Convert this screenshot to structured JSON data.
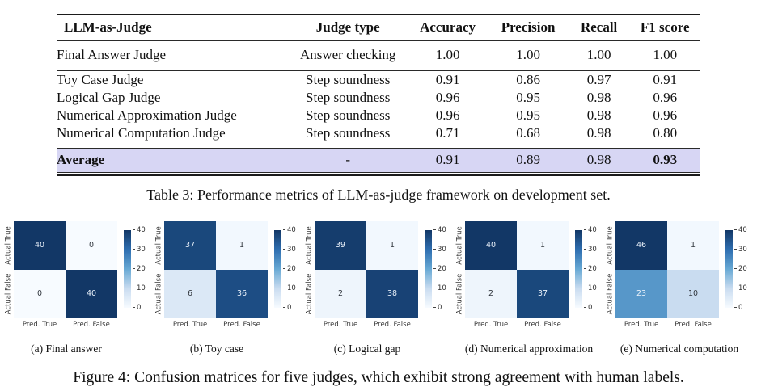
{
  "table": {
    "headers": [
      "LLM-as-Judge",
      "Judge type",
      "Accuracy",
      "Precision",
      "Recall",
      "F1 score"
    ],
    "rows": [
      {
        "group": "final",
        "cells": [
          "Final Answer Judge",
          "Answer checking",
          "1.00",
          "1.00",
          "1.00",
          "1.00"
        ]
      },
      {
        "group": "step",
        "cells": [
          "Toy Case Judge",
          "Step soundness",
          "0.91",
          "0.86",
          "0.97",
          "0.91"
        ]
      },
      {
        "group": "step",
        "cells": [
          "Logical Gap Judge",
          "Step soundness",
          "0.96",
          "0.95",
          "0.98",
          "0.96"
        ]
      },
      {
        "group": "step",
        "cells": [
          "Numerical Approximation Judge",
          "Step soundness",
          "0.96",
          "0.95",
          "0.98",
          "0.96"
        ]
      },
      {
        "group": "step",
        "cells": [
          "Numerical Computation Judge",
          "Step soundness",
          "0.71",
          "0.68",
          "0.98",
          "0.80"
        ]
      },
      {
        "group": "average",
        "highlight": true,
        "bold_cells": [
          0,
          5
        ],
        "cells": [
          "Average",
          "-",
          "0.91",
          "0.89",
          "0.98",
          "0.93"
        ]
      }
    ],
    "highlight_color": "#d7d6f4",
    "caption": "Table 3: Performance metrics of LLM-as-judge framework on development set."
  },
  "figure": {
    "caption": "Figure 4: Confusion matrices for five judges, which exhibit strong agreement with human labels.",
    "colormap": {
      "name": "Blues",
      "stops": [
        "#f7fbff",
        "#c9dcf0",
        "#68a9d4",
        "#2e6eb0",
        "#123766"
      ]
    },
    "cell_text_dark": "#33383f",
    "cell_text_light": "#e9f1fa"
  },
  "chart_data": [
    {
      "type": "heatmap",
      "title": "(a) Final answer",
      "x": [
        "Pred. True",
        "Pred. False"
      ],
      "y": [
        "Actual True",
        "Actual False"
      ],
      "values": [
        [
          40,
          0
        ],
        [
          0,
          40
        ]
      ],
      "colorbar": {
        "min": 0,
        "max": 40,
        "ticks": [
          40,
          30,
          20,
          10,
          0
        ]
      },
      "colormap": "Blues"
    },
    {
      "type": "heatmap",
      "title": "(b) Toy case",
      "x": [
        "Pred. True",
        "Pred. False"
      ],
      "y": [
        "Actual True",
        "Actual False"
      ],
      "values": [
        [
          37,
          1
        ],
        [
          6,
          36
        ]
      ],
      "colorbar": {
        "min": 0,
        "max": 40,
        "ticks": [
          40,
          30,
          20,
          10,
          0
        ]
      },
      "colormap": "Blues"
    },
    {
      "type": "heatmap",
      "title": "(c) Logical gap",
      "x": [
        "Pred. True",
        "Pred. False"
      ],
      "y": [
        "Actual True",
        "Actual False"
      ],
      "values": [
        [
          39,
          1
        ],
        [
          2,
          38
        ]
      ],
      "colorbar": {
        "min": 0,
        "max": 40,
        "ticks": [
          40,
          30,
          20,
          10,
          0
        ]
      },
      "colormap": "Blues"
    },
    {
      "type": "heatmap",
      "title": "(d) Numerical approximation",
      "x": [
        "Pred. True",
        "Pred. False"
      ],
      "y": [
        "Actual True",
        "Actual False"
      ],
      "values": [
        [
          40,
          1
        ],
        [
          2,
          37
        ]
      ],
      "colorbar": {
        "min": 0,
        "max": 40,
        "ticks": [
          40,
          30,
          20,
          10,
          0
        ]
      },
      "colormap": "Blues"
    },
    {
      "type": "heatmap",
      "title": "(e) Numerical computation",
      "x": [
        "Pred. True",
        "Pred. False"
      ],
      "y": [
        "Actual True",
        "Actual False"
      ],
      "values": [
        [
          46,
          1
        ],
        [
          23,
          10
        ]
      ],
      "colorbar": {
        "min": 0,
        "max": 40,
        "ticks": [
          40,
          30,
          20,
          10,
          0
        ]
      },
      "colormap": "Blues"
    }
  ]
}
